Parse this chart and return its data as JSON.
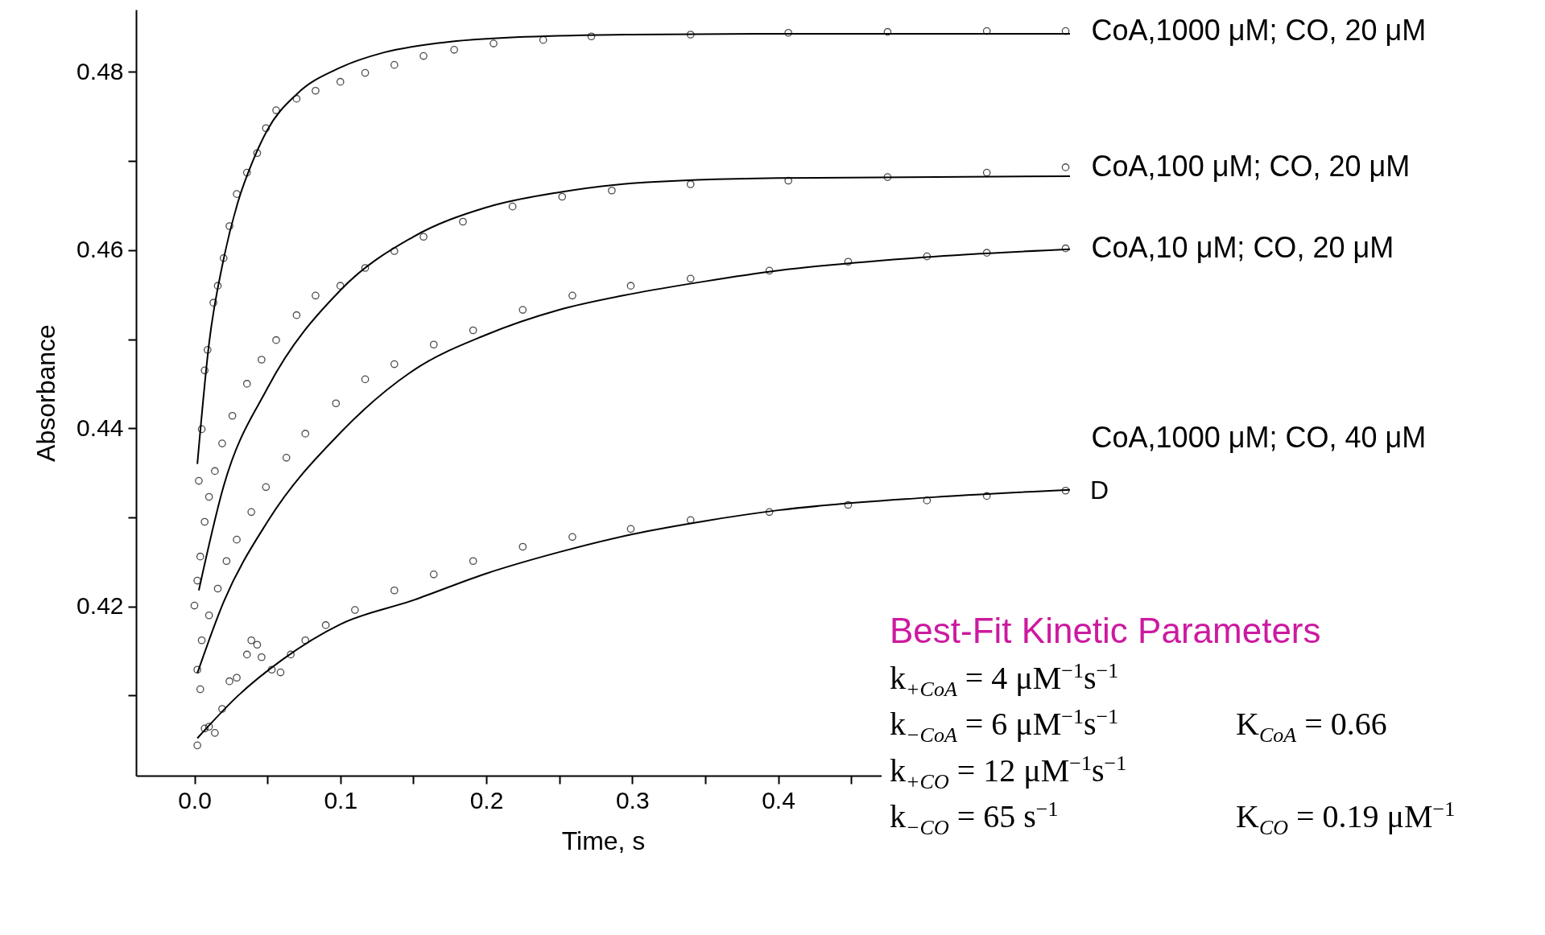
{
  "chart_data": {
    "type": "scatter",
    "xlabel": "Time, s",
    "ylabel": "Absorbance",
    "xlim": [
      -0.04,
      0.6
    ],
    "ylim": [
      0.401,
      0.487
    ],
    "xticks": [
      {
        "value": 0,
        "label": "0.0"
      },
      {
        "value": 0.05,
        "label": null
      },
      0.1,
      {
        "value": 0.15,
        "label": null
      },
      0.2,
      {
        "value": 0.25,
        "label": null
      },
      0.3,
      {
        "value": 0.35,
        "label": null
      },
      0.4,
      {
        "value": 0.45,
        "label": null
      }
    ],
    "yticks": [
      {
        "value": 0.41,
        "label": null
      },
      0.42,
      {
        "value": 0.43,
        "label": null
      },
      0.44,
      {
        "value": 0.45,
        "label": null
      },
      0.46,
      {
        "value": 0.47,
        "label": null
      },
      0.48
    ],
    "grid": false,
    "series": [
      {
        "name": "CoA,1000 μM; CO, 20 μM",
        "color": "#000000",
        "marker": "circle",
        "x": [
          0.003,
          0.005,
          0.007,
          0.009,
          0.013,
          0.016,
          0.02,
          0.024,
          0.029,
          0.036,
          0.043,
          0.049,
          0.056,
          0.07,
          0.083,
          0.1,
          0.117,
          0.137,
          0.157,
          0.178,
          0.205,
          0.239,
          0.272,
          0.34,
          0.407,
          0.475,
          0.543,
          0.597
        ],
        "values": [
          0.4341,
          0.4399,
          0.4465,
          0.4488,
          0.4541,
          0.456,
          0.4591,
          0.4627,
          0.4663,
          0.4687,
          0.4709,
          0.4737,
          0.4757,
          0.477,
          0.4779,
          0.4789,
          0.4799,
          0.4808,
          0.4818,
          0.4825,
          0.4832,
          0.4836,
          0.484,
          0.4842,
          0.4844,
          0.4845,
          0.4846,
          0.4846
        ]
      },
      {
        "name": "CoA,100 μM; CO, 20 μM",
        "color": "#000000",
        "marker": "circle",
        "x": [
          0,
          0.002,
          0.004,
          0.007,
          0.01,
          0.014,
          0.019,
          0.026,
          0.036,
          0.046,
          0.056,
          0.07,
          0.083,
          0.1,
          0.117,
          0.137,
          0.157,
          0.184,
          0.218,
          0.252,
          0.286,
          0.34,
          0.407,
          0.475,
          0.543,
          0.597
        ],
        "values": [
          0.4201,
          0.4229,
          0.4256,
          0.4295,
          0.4323,
          0.4352,
          0.4383,
          0.4414,
          0.445,
          0.4477,
          0.4499,
          0.4527,
          0.4549,
          0.456,
          0.458,
          0.4599,
          0.4615,
          0.4632,
          0.4649,
          0.466,
          0.4667,
          0.4674,
          0.4678,
          0.4682,
          0.4687,
          0.4693
        ]
      },
      {
        "name": "CoA,10 μM; CO, 20 μM",
        "color": "#000000",
        "marker": "circle",
        "x": [
          0.002,
          0.005,
          0.01,
          0.016,
          0.022,
          0.029,
          0.039,
          0.049,
          0.063,
          0.076,
          0.097,
          0.117,
          0.137,
          0.164,
          0.191,
          0.225,
          0.259,
          0.299,
          0.34,
          0.394,
          0.448,
          0.502,
          0.543,
          0.597
        ],
        "values": [
          0.4129,
          0.4162,
          0.419,
          0.422,
          0.4251,
          0.4275,
          0.4306,
          0.4334,
          0.4367,
          0.4394,
          0.4428,
          0.4455,
          0.4472,
          0.4494,
          0.451,
          0.4533,
          0.4549,
          0.456,
          0.4568,
          0.4577,
          0.4587,
          0.4593,
          0.4597,
          0.4602
        ]
      },
      {
        "name": "CoA,1000 μM; CO, 40 μM",
        "color": "#000000",
        "marker": "circle",
        "x": [
          0.002,
          0.004,
          0.007,
          0.01,
          0.014,
          0.019,
          0.024,
          0.029,
          0.036,
          0.039,
          0.043,
          0.046,
          0.053,
          0.059,
          0.066,
          0.076,
          0.09,
          0.11,
          0.137,
          0.164,
          0.191,
          0.225,
          0.259,
          0.299,
          0.34,
          0.394,
          0.448,
          0.502,
          0.543,
          0.597
        ],
        "values": [
          0.4044,
          0.4107,
          0.4063,
          0.4065,
          0.4058,
          0.4085,
          0.4116,
          0.412,
          0.4146,
          0.4162,
          0.4157,
          0.4143,
          0.4129,
          0.4126,
          0.4146,
          0.4162,
          0.4179,
          0.4196,
          0.4218,
          0.4236,
          0.4251,
          0.4267,
          0.4278,
          0.4287,
          0.4297,
          0.4306,
          0.4314,
          0.4319,
          0.4324,
          0.433
        ]
      },
      {
        "color": "#000000",
        "type": "line",
        "x": [
          0.002,
          0.01,
          0.02,
          0.03,
          0.04,
          0.05,
          0.07,
          0.1,
          0.13,
          0.17,
          0.22,
          0.3,
          0.4,
          0.6
        ],
        "values": [
          0.436,
          0.4495,
          0.459,
          0.4655,
          0.47,
          0.4735,
          0.4775,
          0.4805,
          0.4822,
          0.4833,
          0.4839,
          0.4842,
          0.4843,
          0.4843
        ]
      },
      {
        "color": "#000000",
        "type": "line",
        "x": [
          0.003,
          0.02,
          0.05,
          0.1,
          0.15,
          0.2,
          0.25,
          0.3,
          0.4,
          0.6
        ],
        "values": [
          0.4218,
          0.4335,
          0.4445,
          0.4555,
          0.4615,
          0.4648,
          0.4665,
          0.4675,
          0.4681,
          0.4683
        ]
      },
      {
        "color": "#000000",
        "type": "line",
        "x": [
          0.002,
          0.02,
          0.05,
          0.1,
          0.15,
          0.2,
          0.25,
          0.3,
          0.35,
          0.4,
          0.5,
          0.6
        ],
        "values": [
          0.4125,
          0.4205,
          0.4295,
          0.4395,
          0.4465,
          0.4505,
          0.4533,
          0.4551,
          0.4565,
          0.4577,
          0.4592,
          0.4601
        ]
      },
      {
        "color": "#000000",
        "type": "line",
        "x": [
          0.002,
          0.03,
          0.06,
          0.1,
          0.15,
          0.2,
          0.25,
          0.3,
          0.35,
          0.4,
          0.5,
          0.6
        ],
        "values": [
          0.4052,
          0.41,
          0.414,
          0.418,
          0.4207,
          0.4237,
          0.4261,
          0.4281,
          0.4296,
          0.4308,
          0.4322,
          0.4331
        ]
      }
    ],
    "annotations": [
      {
        "text": "D",
        "x": 0.6,
        "y": 0.433
      },
      "Best-Fit Kinetic Parameters",
      "k$_{+CoA}$ = 4 μM$^{−1}$s$^{−1}$",
      "k$_{−CoA}$ = 6 μM$^{−1}$s$^{−1}$",
      "K$_{CoA}$ = 0.66",
      "k$_{+CO}$ = 12 μM$^{−1}$s$^{−1}$",
      "k$_{−CO}$ = 65 s$^{−1}$",
      "K$_{CO}$ = 0.19 μM$^{−1}$"
    ]
  }
}
